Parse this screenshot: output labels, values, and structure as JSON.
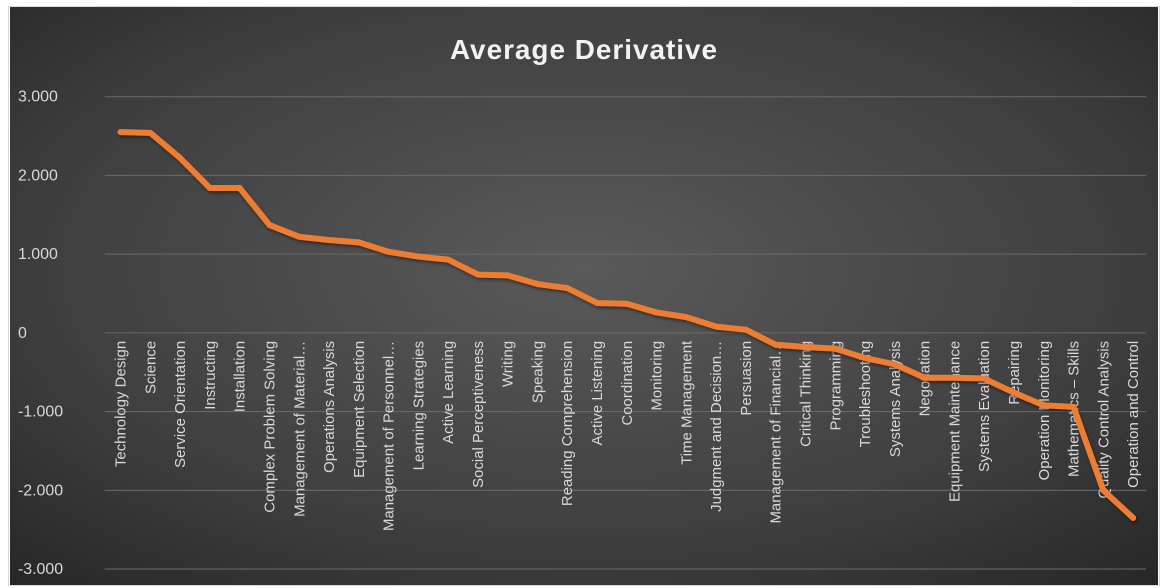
{
  "chart_data": {
    "type": "line",
    "title": "Average Derivative",
    "xlabel": "",
    "ylabel": "",
    "ylim": [
      -3,
      3
    ],
    "y_ticks": [
      {
        "value": 3,
        "label": "3.000"
      },
      {
        "value": 2,
        "label": "2.000"
      },
      {
        "value": 1,
        "label": "1.000"
      },
      {
        "value": 0,
        "label": "0"
      },
      {
        "value": -1,
        "label": "-1.000"
      },
      {
        "value": -2,
        "label": "-2.000"
      },
      {
        "value": -3,
        "label": "-3.000"
      }
    ],
    "grid": true,
    "categories": [
      "Technology Design",
      "Science",
      "Service Orientation",
      "Instructing",
      "Installation",
      "Complex Problem Solving",
      "Management of Material…",
      "Operations Analysis",
      "Equipment Selection",
      "Management of Personnel…",
      "Learning Strategies",
      "Active Learning",
      "Social Perceptiveness",
      "Writing",
      "Speaking",
      "Reading Comprehension",
      "Active Listening",
      "Coordination",
      "Monitoring",
      "Time Management",
      "Judgment and Decision…",
      "Persuasion",
      "Management of Financial…",
      "Critical Thinking",
      "Programming",
      "Troubleshooting",
      "Systems Analysis",
      "Negotiation",
      "Equipment Maintenance",
      "Systems Evaluation",
      "Repairing",
      "Operation Monitoring",
      "Mathematics – Skills",
      "Quality Control Analysis",
      "Operation and Control"
    ],
    "series": [
      {
        "values": [
          2.55,
          2.54,
          2.22,
          1.84,
          1.84,
          1.37,
          1.22,
          1.18,
          1.15,
          1.03,
          0.97,
          0.93,
          0.74,
          0.73,
          0.62,
          0.57,
          0.38,
          0.37,
          0.26,
          0.2,
          0.08,
          0.04,
          -0.15,
          -0.18,
          -0.2,
          -0.32,
          -0.4,
          -0.57,
          -0.57,
          -0.58,
          -0.76,
          -0.92,
          -0.94,
          -2.0,
          -2.35
        ],
        "color": "#ed7d31"
      }
    ]
  }
}
